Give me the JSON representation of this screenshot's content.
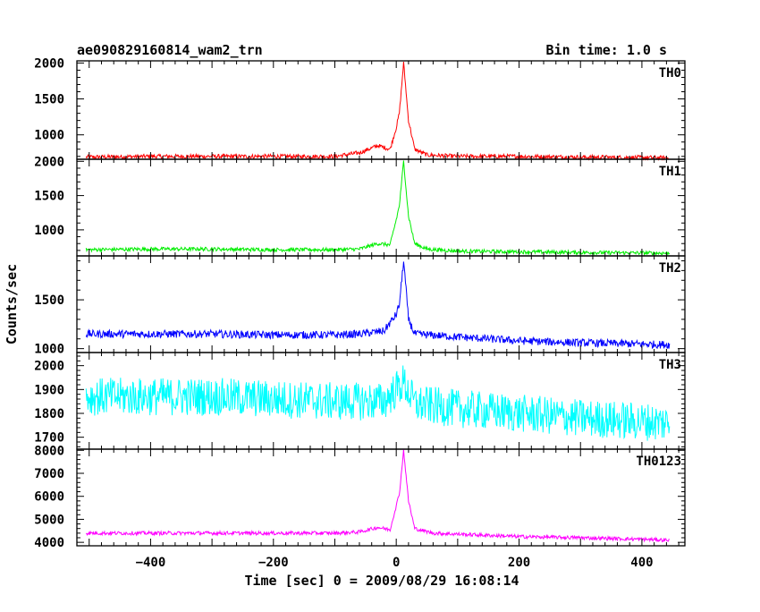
{
  "chart_data": {
    "type": "line",
    "title": "ae090829160814_wam2_trn",
    "subtitle": "Bin time: 1.0 s",
    "xlabel": "Time [sec] 0 = 2009/08/29 16:08:14",
    "ylabel": "Counts/sec",
    "xlim": [
      -520,
      470
    ],
    "x_ticks": [
      -400,
      -200,
      0,
      200,
      400
    ],
    "grid": false,
    "panels": [
      {
        "name": "TH0",
        "color": "#ff0000",
        "ylim": [
          660,
          2030
        ],
        "y_ticks": [
          1000,
          1500,
          2000
        ],
        "series": [
          {
            "x": -505,
            "y": 690
          },
          {
            "x": -400,
            "y": 700
          },
          {
            "x": -300,
            "y": 700
          },
          {
            "x": -200,
            "y": 700
          },
          {
            "x": -100,
            "y": 700
          },
          {
            "x": -60,
            "y": 750
          },
          {
            "x": -30,
            "y": 850
          },
          {
            "x": -10,
            "y": 800
          },
          {
            "x": 0,
            "y": 1100
          },
          {
            "x": 5,
            "y": 1300
          },
          {
            "x": 12,
            "y": 2000
          },
          {
            "x": 20,
            "y": 1200
          },
          {
            "x": 30,
            "y": 800
          },
          {
            "x": 50,
            "y": 720
          },
          {
            "x": 100,
            "y": 700
          },
          {
            "x": 200,
            "y": 700
          },
          {
            "x": 300,
            "y": 690
          },
          {
            "x": 445,
            "y": 680
          }
        ],
        "noise": 60
      },
      {
        "name": "TH1",
        "color": "#00ee00",
        "ylim": [
          620,
          2030
        ],
        "y_ticks": [
          1000,
          1500,
          2000
        ],
        "series": [
          {
            "x": -505,
            "y": 710
          },
          {
            "x": -400,
            "y": 720
          },
          {
            "x": -300,
            "y": 720
          },
          {
            "x": -200,
            "y": 710
          },
          {
            "x": -100,
            "y": 710
          },
          {
            "x": -60,
            "y": 720
          },
          {
            "x": -30,
            "y": 800
          },
          {
            "x": -10,
            "y": 780
          },
          {
            "x": 0,
            "y": 1150
          },
          {
            "x": 5,
            "y": 1350
          },
          {
            "x": 12,
            "y": 2000
          },
          {
            "x": 20,
            "y": 1200
          },
          {
            "x": 30,
            "y": 800
          },
          {
            "x": 50,
            "y": 720
          },
          {
            "x": 100,
            "y": 690
          },
          {
            "x": 200,
            "y": 680
          },
          {
            "x": 300,
            "y": 670
          },
          {
            "x": 445,
            "y": 660
          }
        ],
        "noise": 55
      },
      {
        "name": "TH2",
        "color": "#0000ff",
        "ylim": [
          960,
          1950
        ],
        "y_ticks": [
          1000,
          1500
        ],
        "series": [
          {
            "x": -505,
            "y": 1150
          },
          {
            "x": -400,
            "y": 1150
          },
          {
            "x": -300,
            "y": 1150
          },
          {
            "x": -200,
            "y": 1140
          },
          {
            "x": -100,
            "y": 1140
          },
          {
            "x": -60,
            "y": 1150
          },
          {
            "x": -20,
            "y": 1180
          },
          {
            "x": 0,
            "y": 1350
          },
          {
            "x": 5,
            "y": 1450
          },
          {
            "x": 12,
            "y": 1900
          },
          {
            "x": 20,
            "y": 1300
          },
          {
            "x": 30,
            "y": 1150
          },
          {
            "x": 100,
            "y": 1120
          },
          {
            "x": 200,
            "y": 1080
          },
          {
            "x": 300,
            "y": 1060
          },
          {
            "x": 445,
            "y": 1040
          }
        ],
        "noise": 80
      },
      {
        "name": "TH3",
        "color": "#00ffff",
        "ylim": [
          1650,
          2055
        ],
        "y_ticks": [
          1700,
          1800,
          1900,
          2000
        ],
        "series": [
          {
            "x": -505,
            "y": 1870
          },
          {
            "x": -400,
            "y": 1870
          },
          {
            "x": -300,
            "y": 1870
          },
          {
            "x": -200,
            "y": 1860
          },
          {
            "x": -100,
            "y": 1850
          },
          {
            "x": -20,
            "y": 1850
          },
          {
            "x": 12,
            "y": 1930
          },
          {
            "x": 30,
            "y": 1840
          },
          {
            "x": 100,
            "y": 1820
          },
          {
            "x": 200,
            "y": 1800
          },
          {
            "x": 300,
            "y": 1780
          },
          {
            "x": 445,
            "y": 1760
          }
        ],
        "noise": 160
      },
      {
        "name": "TH0123",
        "color": "#ff00ff",
        "ylim": [
          3850,
          8050
        ],
        "y_ticks": [
          4000,
          5000,
          6000,
          7000,
          8000
        ],
        "series": [
          {
            "x": -505,
            "y": 4400
          },
          {
            "x": -400,
            "y": 4400
          },
          {
            "x": -300,
            "y": 4400
          },
          {
            "x": -200,
            "y": 4400
          },
          {
            "x": -100,
            "y": 4400
          },
          {
            "x": -60,
            "y": 4450
          },
          {
            "x": -30,
            "y": 4650
          },
          {
            "x": -10,
            "y": 4550
          },
          {
            "x": 0,
            "y": 5600
          },
          {
            "x": 5,
            "y": 6100
          },
          {
            "x": 12,
            "y": 8000
          },
          {
            "x": 20,
            "y": 5800
          },
          {
            "x": 30,
            "y": 4600
          },
          {
            "x": 60,
            "y": 4400
          },
          {
            "x": 200,
            "y": 4250
          },
          {
            "x": 300,
            "y": 4200
          },
          {
            "x": 445,
            "y": 4100
          }
        ],
        "noise": 160
      }
    ]
  }
}
